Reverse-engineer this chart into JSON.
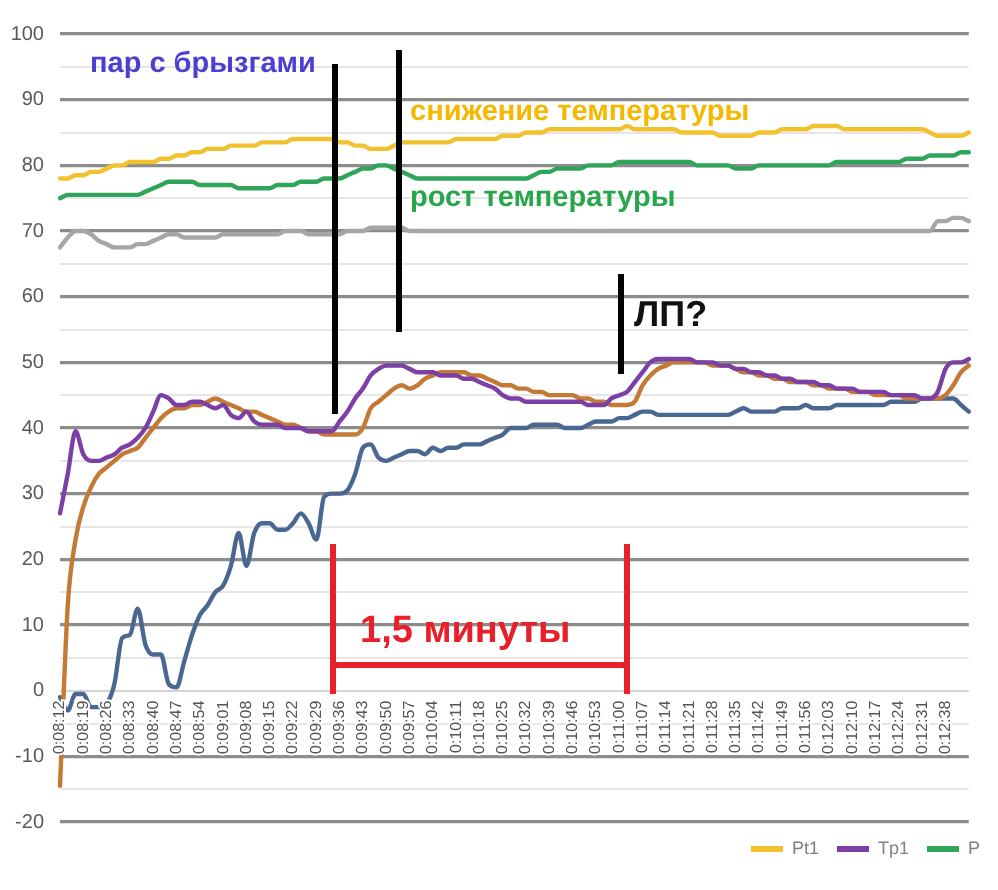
{
  "chart_data": {
    "type": "line",
    "categories": [
      "0:08:12",
      null,
      null,
      "0:08:19",
      null,
      null,
      "0:08:26",
      null,
      null,
      "0:08:33",
      null,
      null,
      "0:08:40",
      null,
      null,
      "0:08:47",
      null,
      null,
      "0:08:54",
      null,
      null,
      "0:09:01",
      null,
      null,
      "0:09:08",
      null,
      null,
      "0:09:15",
      null,
      null,
      "0:09:22",
      null,
      null,
      "0:09:29",
      null,
      null,
      "0:09:36",
      null,
      null,
      "0:09:43",
      null,
      null,
      "0:09:50",
      null,
      null,
      "0:09:57",
      null,
      null,
      "0:10:04",
      null,
      null,
      "0:10:11",
      null,
      null,
      "0:10:18",
      null,
      null,
      "0:10:25",
      null,
      null,
      "0:10:32",
      null,
      null,
      "0:10:39",
      null,
      null,
      "0:10:46",
      null,
      null,
      "0:10:53",
      null,
      null,
      "0:11:00",
      null,
      null,
      "0:11:07",
      null,
      null,
      "0:11:14",
      null,
      null,
      "0:11:21",
      null,
      null,
      "0:11:28",
      null,
      null,
      "0:11:35",
      null,
      null,
      "0:11:42",
      null,
      null,
      "0:11:49",
      null,
      null,
      "0:11:56",
      null,
      null,
      "0:12:03",
      null,
      null,
      "0:12:10",
      null,
      null,
      "0:12:17",
      null,
      null,
      "0:12:24",
      null,
      null,
      "0:12:31",
      null,
      null,
      "0:12:38",
      null,
      null,
      null
    ],
    "series": [
      {
        "name": "Pt1",
        "color": "#f2c12e",
        "values": [
          78,
          78,
          78.5,
          78.5,
          79,
          79,
          79.5,
          80,
          80,
          80.5,
          80.5,
          80.5,
          80.5,
          81,
          81,
          81.5,
          81.5,
          82,
          82,
          82.5,
          82.5,
          82.5,
          83,
          83,
          83,
          83,
          83.5,
          83.5,
          83.5,
          83.5,
          84,
          84,
          84,
          84,
          84,
          84,
          83.5,
          83.5,
          83,
          83,
          82.5,
          82.5,
          82.5,
          83,
          83.5,
          83.5,
          83.5,
          83.5,
          83.5,
          83.5,
          83.5,
          84,
          84,
          84,
          84,
          84,
          84,
          84.5,
          84.5,
          84.5,
          85,
          85,
          85,
          85.5,
          85.5,
          85.5,
          85.5,
          85.5,
          85.5,
          85.5,
          85.5,
          85.5,
          85.5,
          86,
          85.5,
          85.5,
          85.5,
          85.5,
          85.5,
          85.5,
          85,
          85,
          85,
          85,
          85,
          84.5,
          84.5,
          84.5,
          84.5,
          84.5,
          85,
          85,
          85,
          85.5,
          85.5,
          85.5,
          85.5,
          86,
          86,
          86,
          86,
          85.5,
          85.5,
          85.5,
          85.5,
          85.5,
          85.5,
          85.5,
          85.5,
          85.5,
          85.5,
          85.5,
          85,
          84.5,
          84.5,
          84.5,
          84.5,
          85
        ]
      },
      {
        "name": "Tp1",
        "color": "#7b3fa6",
        "values": [
          27,
          33,
          39.5,
          36,
          35,
          35,
          35.5,
          36,
          37,
          37.5,
          38.5,
          40,
          42.5,
          45,
          44.5,
          43.5,
          43.5,
          44,
          44,
          43.5,
          43,
          43.5,
          42,
          41.5,
          42.5,
          41,
          40.5,
          40.5,
          40.5,
          40,
          40,
          40,
          39.5,
          39.5,
          39.5,
          39.5,
          41,
          42.5,
          44.5,
          46,
          48,
          49,
          49.5,
          49.5,
          49.5,
          49,
          48.5,
          48.5,
          48.5,
          48,
          48,
          48,
          47.5,
          47.5,
          47,
          46.5,
          46,
          45,
          44.5,
          44.5,
          44,
          44,
          44,
          44,
          44,
          44,
          44,
          44,
          43.5,
          43.5,
          43.5,
          44.5,
          45,
          45.5,
          47,
          48.5,
          50,
          50.5,
          50.5,
          50.5,
          50.5,
          50.5,
          50,
          50,
          50,
          49.5,
          49.5,
          49,
          49,
          48.5,
          48.5,
          48,
          48,
          47.5,
          47.5,
          47,
          47,
          47,
          46.5,
          46.5,
          46,
          46,
          46,
          45.5,
          45.5,
          45.5,
          45.5,
          45,
          45,
          45,
          45,
          44.5,
          44.5,
          45.5,
          49,
          50,
          50,
          50.5
        ]
      },
      {
        "name": "P",
        "color": "#2ea55a",
        "values": [
          75,
          75.5,
          75.5,
          75.5,
          75.5,
          75.5,
          75.5,
          75.5,
          75.5,
          75.5,
          75.5,
          76,
          76.5,
          77,
          77.5,
          77.5,
          77.5,
          77.5,
          77,
          77,
          77,
          77,
          77,
          76.5,
          76.5,
          76.5,
          76.5,
          76.5,
          77,
          77,
          77,
          77.5,
          77.5,
          77.5,
          78,
          78,
          78,
          78.5,
          79,
          79.5,
          79.5,
          80,
          80,
          79.5,
          79,
          78.5,
          78,
          78,
          78,
          78,
          78,
          78,
          78,
          78,
          78,
          78,
          78,
          78,
          78,
          78,
          78,
          78.5,
          79,
          79,
          79.5,
          79.5,
          79.5,
          79.5,
          80,
          80,
          80,
          80,
          80.5,
          80.5,
          80.5,
          80.5,
          80.5,
          80.5,
          80.5,
          80.5,
          80.5,
          80.5,
          80,
          80,
          80,
          80,
          80,
          79.5,
          79.5,
          79.5,
          80,
          80,
          80,
          80,
          80,
          80,
          80,
          80,
          80,
          80,
          80.5,
          80.5,
          80.5,
          80.5,
          80.5,
          80.5,
          80.5,
          80.5,
          80.5,
          81,
          81,
          81,
          81.5,
          81.5,
          81.5,
          81.5,
          82,
          82
        ]
      },
      {
        "color": "#a6a6a6",
        "values": [
          67.5,
          69,
          70,
          70,
          69.5,
          68.5,
          68,
          67.5,
          67.5,
          67.5,
          68,
          68,
          68.5,
          69,
          69.5,
          69.5,
          69,
          69,
          69,
          69,
          69,
          69.5,
          69.5,
          69.5,
          69.5,
          69.5,
          69.5,
          69.5,
          69.5,
          70,
          70,
          70,
          69.5,
          69.5,
          69.5,
          69.5,
          69.5,
          70,
          70,
          70,
          70.5,
          70.5,
          70.5,
          70.5,
          70.5,
          70,
          70,
          70,
          70,
          70,
          70,
          70,
          70,
          70,
          70,
          70,
          70,
          70,
          70,
          70,
          70,
          70,
          70,
          70,
          70,
          70,
          70,
          70,
          70,
          70,
          70,
          70,
          70,
          70,
          70,
          70,
          70,
          70,
          70,
          70,
          70,
          70,
          70,
          70,
          70,
          70,
          70,
          70,
          70,
          70,
          70,
          70,
          70,
          70,
          70,
          70,
          70,
          70,
          70,
          70,
          70,
          70,
          70,
          70,
          70,
          70,
          70,
          70,
          70,
          70,
          70,
          70,
          70,
          71.5,
          71.5,
          72,
          72,
          71.5
        ]
      },
      {
        "color": "#c47a34",
        "values": [
          -14.5,
          13,
          23,
          28,
          31,
          33,
          34,
          35,
          36,
          36.5,
          37,
          38.5,
          40,
          41.5,
          42.5,
          43,
          43,
          43.5,
          43.5,
          44,
          44.5,
          44,
          43.5,
          43,
          42.5,
          42.5,
          42,
          41.5,
          41,
          40.5,
          40.5,
          40,
          39.5,
          39.5,
          39,
          39,
          39,
          39,
          39,
          40,
          43,
          44,
          45,
          46,
          46.5,
          46,
          46.5,
          47.5,
          48,
          48.5,
          48.5,
          48.5,
          48.5,
          48,
          48,
          47.5,
          47,
          46.5,
          46.5,
          46,
          46,
          45.5,
          45.5,
          45,
          45,
          45,
          45,
          44.5,
          44.5,
          44,
          44,
          43.5,
          43.5,
          43.5,
          44,
          46.5,
          48,
          49,
          49.5,
          50,
          50,
          50,
          50,
          50,
          49.5,
          49.5,
          49.5,
          49,
          48.5,
          48.5,
          48,
          48,
          47.5,
          47.5,
          47,
          47,
          47,
          46.5,
          46.5,
          46,
          46,
          46,
          45.5,
          45.5,
          45.5,
          45,
          45,
          45,
          45,
          44.5,
          44.5,
          44.5,
          44.5,
          44.5,
          45,
          46.5,
          48.5,
          49.5
        ]
      },
      {
        "color": "#4a6792",
        "values": [
          -1,
          -3,
          -0.5,
          -0.5,
          -2.5,
          -2.5,
          -2,
          1,
          8,
          8.5,
          12.5,
          7,
          5.5,
          5.5,
          1,
          0.5,
          4.5,
          8.5,
          11.5,
          13,
          15,
          16,
          19,
          24,
          19,
          24,
          25.5,
          25.5,
          24.5,
          24.5,
          25.5,
          27,
          25.5,
          23,
          29.5,
          30,
          30,
          30.5,
          33,
          37,
          37.5,
          35.5,
          35,
          35.5,
          36,
          36.5,
          36.5,
          36,
          37,
          36.5,
          37,
          37,
          37.5,
          37.5,
          37.5,
          38,
          38.5,
          39,
          40,
          40,
          40,
          40.5,
          40.5,
          40.5,
          40.5,
          40,
          40,
          40,
          40.5,
          41,
          41,
          41,
          41.5,
          41.5,
          42,
          42.5,
          42.5,
          42,
          42,
          42,
          42,
          42,
          42,
          42,
          42,
          42,
          42,
          42.5,
          43,
          42.5,
          42.5,
          42.5,
          42.5,
          43,
          43,
          43,
          43.5,
          43,
          43,
          43,
          43.5,
          43.5,
          43.5,
          43.5,
          43.5,
          43.5,
          43.5,
          44,
          44,
          44,
          44,
          44.5,
          44.5,
          44.5,
          44.5,
          44.5,
          43.5,
          42.5
        ]
      }
    ],
    "ylim": [
      -20,
      100
    ],
    "yticks": [
      -20,
      {
        "value": -15,
        "label": null
      },
      -10,
      {
        "value": -5,
        "label": null
      },
      0,
      {
        "value": 5,
        "label": null
      },
      10,
      {
        "value": 15,
        "label": null
      },
      20,
      {
        "value": 25,
        "label": null
      },
      30,
      {
        "value": 35,
        "label": null
      },
      40,
      {
        "value": 45,
        "label": null
      },
      50,
      {
        "value": 55,
        "label": null
      },
      60,
      {
        "value": 65,
        "label": null
      },
      70,
      {
        "value": 75,
        "label": null
      },
      80,
      {
        "value": 85,
        "label": null
      },
      90,
      {
        "value": 95,
        "label": null
      },
      100
    ],
    "grid": "y",
    "legend": "bottom right",
    "marker": "none",
    "line_style": "solid",
    "annotations": [
      "пар с брызгами",
      "снижение температуры",
      "рост температуры",
      "ЛП?",
      "1,5 минуты"
    ]
  }
}
